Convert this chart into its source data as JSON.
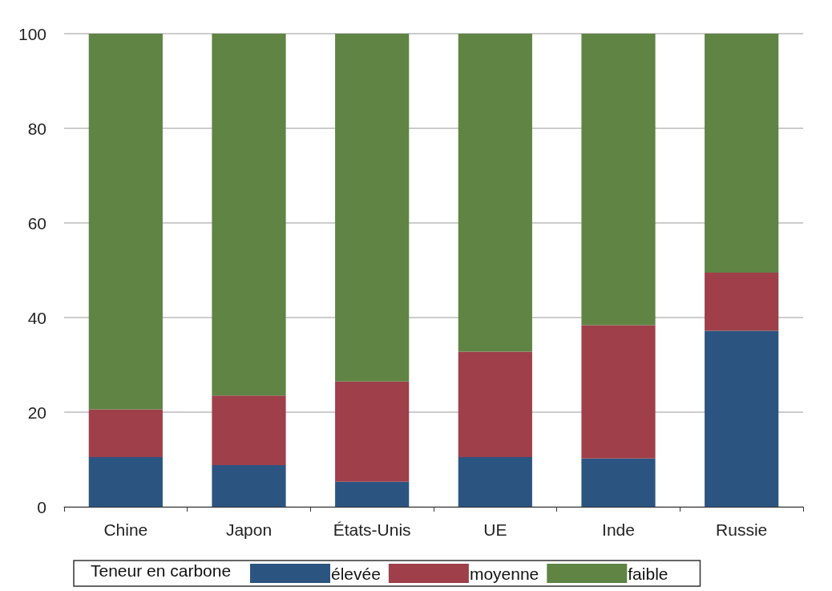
{
  "chart_data": {
    "type": "bar",
    "stacked": true,
    "categories": [
      "Chine",
      "Japon",
      "États-Unis",
      "UE",
      "Inde",
      "Russie"
    ],
    "series": [
      {
        "name": "élevée",
        "color": "#2c5480",
        "values": [
          10.5,
          8.8,
          5.3,
          10.5,
          10.2,
          37.2
        ]
      },
      {
        "name": "moyenne",
        "color": "#9e3f4a",
        "values": [
          10.1,
          14.7,
          21.2,
          22.3,
          28.2,
          12.3
        ]
      },
      {
        "name": "faible",
        "color": "#5f8444",
        "values": [
          79.4,
          76.5,
          73.5,
          67.2,
          61.6,
          50.5
        ]
      }
    ],
    "ylim": [
      0,
      100
    ],
    "yticks": [
      0,
      20,
      40,
      60,
      80,
      100
    ],
    "grid": "y",
    "legend": "bottom",
    "legend_title": "Teneur en carbone"
  }
}
